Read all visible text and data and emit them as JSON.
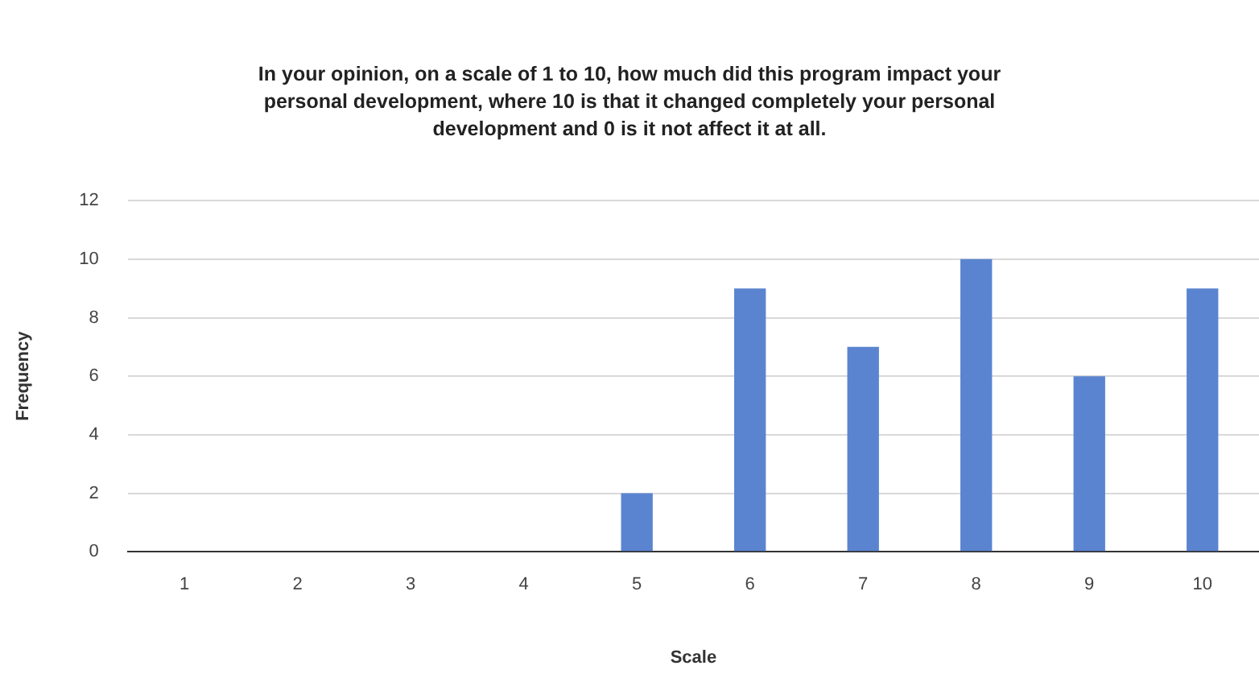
{
  "chart_data": {
    "type": "bar",
    "title": "In your opinion, on a scale of 1 to 10, how much did this program impact your personal development, where 10 is that it changed completely your personal development and 0 is it not affect it at all.",
    "xlabel": "Scale",
    "ylabel": "Frequency",
    "categories": [
      "1",
      "2",
      "3",
      "4",
      "5",
      "6",
      "7",
      "8",
      "9",
      "10"
    ],
    "values": [
      0,
      0,
      0,
      0,
      2,
      9,
      7,
      10,
      6,
      9
    ],
    "color": "#5b84d0",
    "ylim": [
      0,
      12
    ],
    "yticks": [
      0,
      2,
      4,
      6,
      8,
      10,
      12
    ],
    "grid": "y",
    "legend": false
  }
}
